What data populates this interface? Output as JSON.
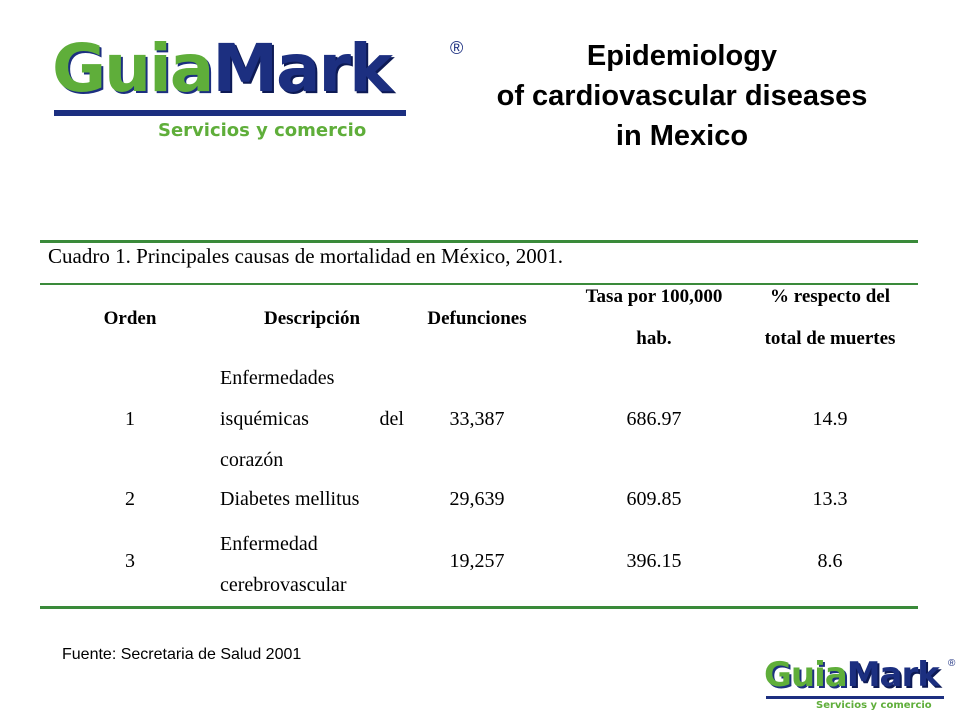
{
  "logo": {
    "word_part1": "Guia",
    "word_part2": "Mark",
    "registered": "®",
    "tagline": "Servicios y comercio",
    "brand_green": "#5fae3a",
    "brand_blue": "#1c2f80"
  },
  "title": {
    "line1": "Epidemiology",
    "line2": "of cardiovascular diseases",
    "line3": "in Mexico"
  },
  "table": {
    "caption": "Cuadro 1. Principales causas de mortalidad en México, 2001.",
    "headers": {
      "orden": "Orden",
      "descripcion": "Descripción",
      "defunciones": "Defunciones",
      "tasa_line1": "Tasa por 100,000",
      "tasa_line2": "hab.",
      "pct_line1": "% respecto del",
      "pct_line2": "total de muertes"
    },
    "rows": [
      {
        "orden": "1",
        "descripcion": "Enfermedades isquémicas del corazón",
        "defunciones": "33,387",
        "tasa": "686.97",
        "pct": "14.9"
      },
      {
        "orden": "2",
        "descripcion": "Diabetes mellitus",
        "defunciones": "29,639",
        "tasa": "609.85",
        "pct": "13.3"
      },
      {
        "orden": "3",
        "descripcion": "Enfermedad cerebrovascular",
        "defunciones": "19,257",
        "tasa": "396.15",
        "pct": "8.6"
      }
    ],
    "rule_color": "#3a8a3a"
  },
  "source": "Fuente: Secretaria de Salud 2001"
}
